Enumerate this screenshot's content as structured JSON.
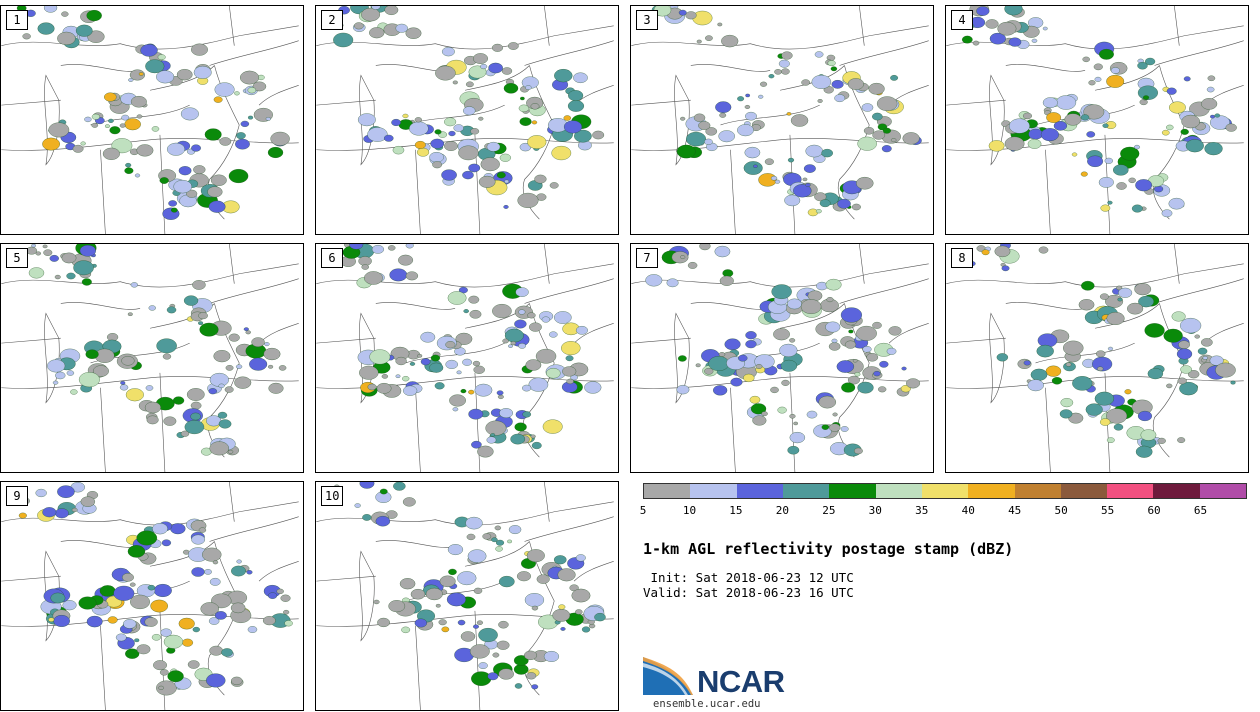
{
  "panels": [
    {
      "label": "1"
    },
    {
      "label": "2"
    },
    {
      "label": "3"
    },
    {
      "label": "4"
    },
    {
      "label": "5"
    },
    {
      "label": "6"
    },
    {
      "label": "7"
    },
    {
      "label": "8"
    },
    {
      "label": "9"
    },
    {
      "label": "10"
    }
  ],
  "colorbar": {
    "colors": [
      "#a8a8a8",
      "#b7c3ef",
      "#5b64dc",
      "#4f9a9a",
      "#0a8a0a",
      "#bfe0bf",
      "#f0e06a",
      "#f0b020",
      "#c08030",
      "#8b5a3c",
      "#f25080",
      "#6e1a3c",
      "#b04ca8"
    ],
    "ticks": [
      "5",
      "10",
      "15",
      "20",
      "25",
      "30",
      "35",
      "40",
      "45",
      "50",
      "55",
      "60",
      "65"
    ]
  },
  "title": "1-km AGL reflectivity postage stamp (dBZ)",
  "init": " Init: Sat 2018-06-23 12 UTC",
  "valid": "Valid: Sat 2018-06-23 16 UTC",
  "logo": {
    "text": "NCAR",
    "url": "ensemble.ucar.edu"
  }
}
